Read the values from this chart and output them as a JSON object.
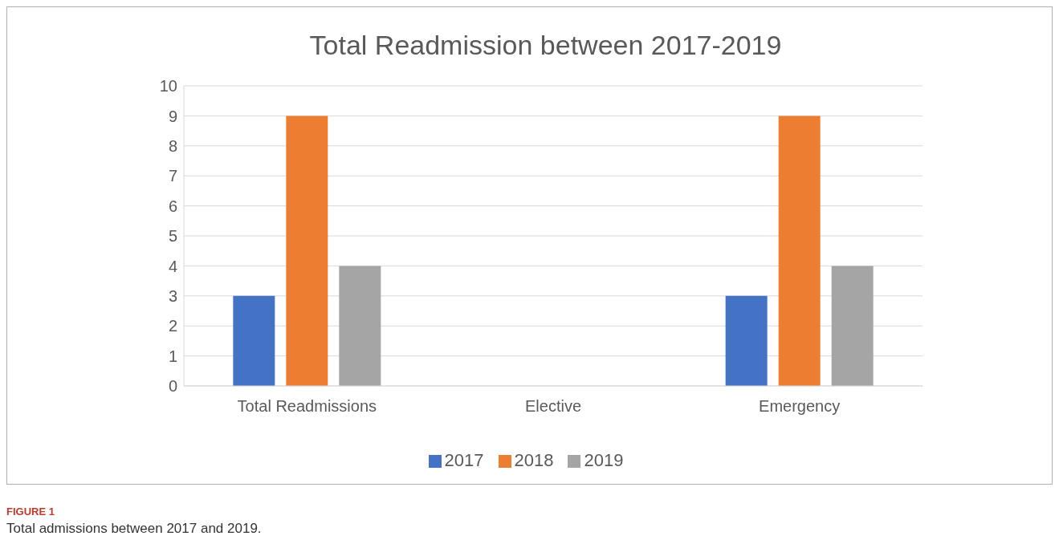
{
  "chart_data": {
    "type": "bar",
    "title": "Total Readmission between 2017-2019",
    "categories": [
      "Total Readmissions",
      "Elective",
      "Emergency"
    ],
    "series": [
      {
        "name": "2017",
        "color": "#4472c4",
        "values": [
          3,
          0,
          3
        ]
      },
      {
        "name": "2018",
        "color": "#ed7d31",
        "values": [
          9,
          0,
          9
        ]
      },
      {
        "name": "2019",
        "color": "#a5a5a5",
        "values": [
          4,
          0,
          4
        ]
      }
    ],
    "ylim": [
      0,
      10
    ],
    "yticks": [
      0,
      1,
      2,
      3,
      4,
      5,
      6,
      7,
      8,
      9,
      10
    ],
    "grid": "y",
    "legend": "bottom",
    "annotations": [
      "FIGURE 1",
      "Total admissions between 2017 and 2019."
    ]
  }
}
